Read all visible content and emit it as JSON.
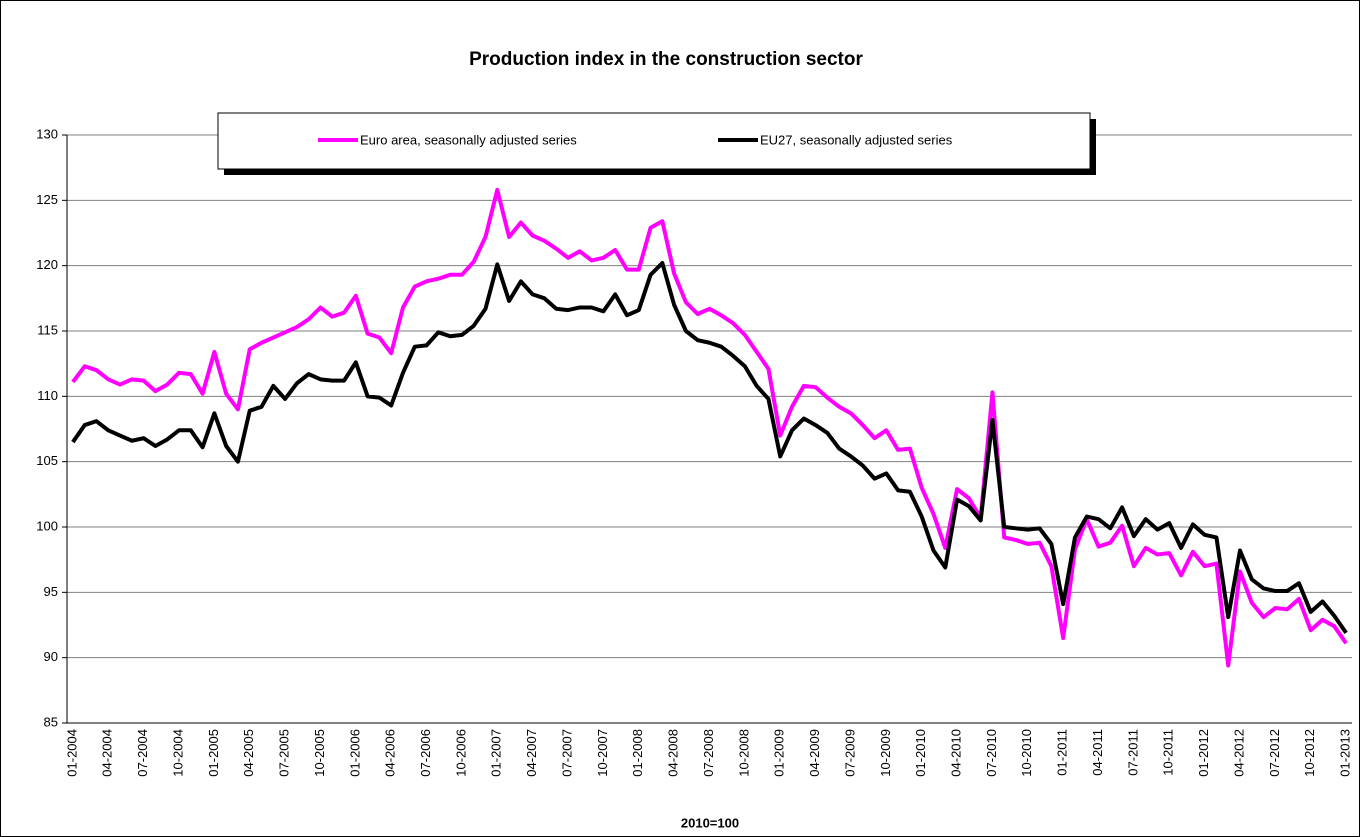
{
  "chart_data": {
    "type": "line",
    "title": "Production index in the construction sector",
    "xlabel": "2010=100",
    "categories": [
      "01-2004",
      null,
      null,
      "04-2004",
      null,
      null,
      "07-2004",
      null,
      null,
      "10-2004",
      null,
      null,
      "01-2005",
      null,
      null,
      "04-2005",
      null,
      null,
      "07-2005",
      null,
      null,
      "10-2005",
      null,
      null,
      "01-2006",
      null,
      null,
      "04-2006",
      null,
      null,
      "07-2006",
      null,
      null,
      "10-2006",
      null,
      null,
      "01-2007",
      null,
      null,
      "04-2007",
      null,
      null,
      "07-2007",
      null,
      null,
      "10-2007",
      null,
      null,
      "01-2008",
      null,
      null,
      "04-2008",
      null,
      null,
      "07-2008",
      null,
      null,
      "10-2008",
      null,
      null,
      "01-2009",
      null,
      null,
      "04-2009",
      null,
      null,
      "07-2009",
      null,
      null,
      "10-2009",
      null,
      null,
      "01-2010",
      null,
      null,
      "04-2010",
      null,
      null,
      "07-2010",
      null,
      null,
      "10-2010",
      null,
      null,
      "01-2011",
      null,
      null,
      "04-2011",
      null,
      null,
      "07-2011",
      null,
      null,
      "10-2011",
      null,
      null,
      "01-2012",
      null,
      null,
      "04-2012",
      null,
      null,
      "07-2012",
      null,
      null,
      "10-2012",
      null,
      null,
      "01-2013"
    ],
    "series": [
      {
        "name": "Euro area, seasonally adjusted series",
        "color": "#ff00ff",
        "values": [
          111.1,
          112.3,
          112.0,
          111.3,
          110.9,
          111.3,
          111.2,
          110.4,
          110.9,
          111.8,
          111.7,
          110.2,
          113.4,
          110.2,
          109.0,
          113.6,
          114.1,
          114.5,
          114.9,
          115.3,
          115.9,
          116.8,
          116.1,
          116.4,
          117.7,
          114.8,
          114.5,
          113.3,
          116.8,
          118.4,
          118.8,
          119.0,
          119.3,
          119.3,
          120.3,
          122.2,
          125.8,
          122.2,
          123.3,
          122.3,
          121.9,
          121.3,
          120.6,
          121.1,
          120.4,
          120.6,
          121.2,
          119.7,
          119.7,
          122.9,
          123.4,
          119.4,
          117.2,
          116.3,
          116.7,
          116.2,
          115.6,
          114.7,
          113.4,
          112.1,
          107.0,
          109.2,
          110.8,
          110.7,
          109.9,
          109.2,
          108.7,
          107.8,
          106.8,
          107.4,
          105.9,
          106.0,
          103.0,
          101.0,
          98.4,
          102.9,
          102.2,
          100.7,
          110.3,
          99.2,
          99.0,
          98.7,
          98.8,
          97.0,
          91.5,
          98.3,
          100.6,
          98.5,
          98.8,
          100.1,
          97.0,
          98.4,
          97.9,
          98.0,
          96.3,
          98.1,
          97.0,
          97.2,
          89.4,
          96.6,
          94.2,
          93.1,
          93.8,
          93.7,
          94.5,
          92.1,
          92.9,
          92.4,
          91.1
        ]
      },
      {
        "name": "EU27, seasonally adjusted series",
        "color": "#000000",
        "values": [
          106.5,
          107.8,
          108.1,
          107.4,
          107.0,
          106.6,
          106.8,
          106.2,
          106.7,
          107.4,
          107.4,
          106.1,
          108.7,
          106.2,
          105.0,
          108.9,
          109.2,
          110.8,
          109.8,
          111.0,
          111.7,
          111.3,
          111.2,
          111.2,
          112.6,
          110.0,
          109.9,
          109.3,
          111.8,
          113.8,
          113.9,
          114.9,
          114.6,
          114.7,
          115.4,
          116.7,
          120.1,
          117.3,
          118.8,
          117.8,
          117.5,
          116.7,
          116.6,
          116.8,
          116.8,
          116.5,
          117.8,
          116.2,
          116.6,
          119.3,
          120.2,
          117.0,
          115.0,
          114.3,
          114.1,
          113.8,
          113.1,
          112.3,
          110.8,
          109.8,
          105.4,
          107.4,
          108.3,
          107.8,
          107.2,
          106.0,
          105.4,
          104.7,
          103.7,
          104.1,
          102.8,
          102.7,
          100.8,
          98.2,
          96.9,
          102.1,
          101.6,
          100.5,
          108.2,
          100.0,
          99.9,
          99.8,
          99.9,
          98.7,
          94.1,
          99.2,
          100.8,
          100.6,
          99.9,
          101.5,
          99.3,
          100.6,
          99.8,
          100.3,
          98.4,
          100.2,
          99.4,
          99.2,
          93.1,
          98.2,
          96.0,
          95.3,
          95.1,
          95.1,
          95.7,
          93.5,
          94.3,
          93.2,
          91.9
        ]
      }
    ],
    "ylim": [
      85,
      130
    ],
    "yticks": [
      85,
      90,
      95,
      100,
      105,
      110,
      115,
      120,
      125,
      130
    ],
    "grid": true
  }
}
